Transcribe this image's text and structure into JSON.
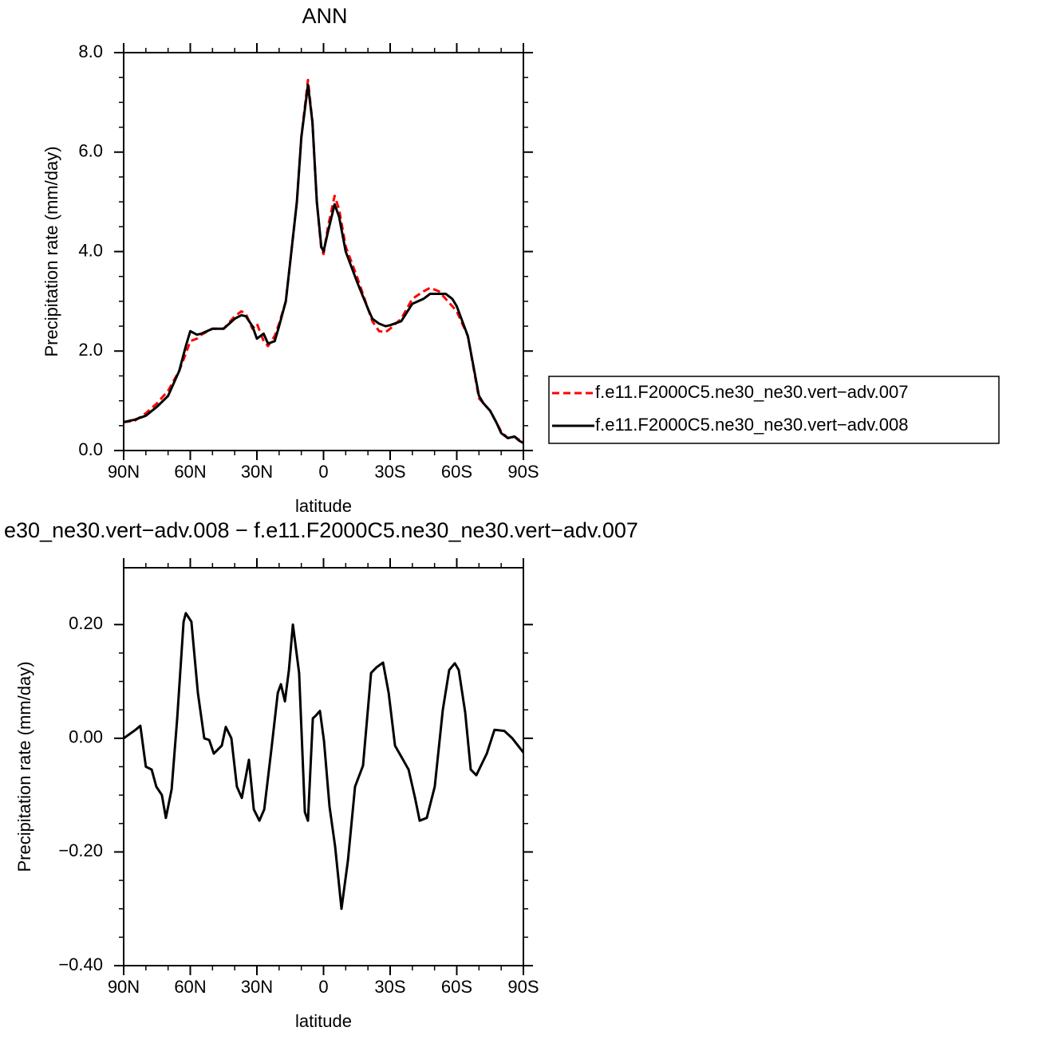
{
  "chart_data": [
    {
      "type": "line",
      "title": "ANN",
      "xlabel": "latitude",
      "ylabel": "Precipitation rate (mm/day)",
      "x": [
        90,
        85,
        80,
        75,
        70,
        65,
        62,
        60,
        57,
        55,
        50,
        45,
        40,
        37,
        35,
        32,
        30,
        27,
        25,
        22,
        20,
        17,
        15,
        12,
        10,
        7,
        5,
        3,
        1,
        0,
        -2,
        -5,
        -7,
        -10,
        -15,
        -20,
        -22,
        -25,
        -28,
        -30,
        -35,
        -40,
        -45,
        -48,
        -52,
        -55,
        -58,
        -60,
        -65,
        -70,
        -72,
        -75,
        -78,
        -80,
        -83,
        -86,
        -88,
        -90
      ],
      "series": [
        {
          "name": "f.e11.F2000C5.ne30_ne30.vert−adv.007",
          "color": "#ff0000",
          "linestyle": "dashed",
          "values": [
            0.57,
            0.6,
            0.75,
            0.95,
            1.2,
            1.6,
            1.95,
            2.2,
            2.25,
            2.33,
            2.45,
            2.45,
            2.7,
            2.8,
            2.75,
            2.45,
            2.55,
            2.2,
            2.1,
            2.3,
            2.55,
            3.0,
            3.8,
            5.0,
            6.3,
            7.45,
            6.6,
            5.0,
            4.05,
            3.95,
            4.5,
            5.12,
            4.85,
            4.1,
            3.5,
            2.85,
            2.6,
            2.4,
            2.38,
            2.45,
            2.65,
            3.05,
            3.2,
            3.27,
            3.2,
            3.05,
            2.9,
            2.8,
            2.3,
            1.05,
            0.95,
            0.8,
            0.55,
            0.38,
            0.25,
            0.28,
            0.22,
            0.15
          ]
        },
        {
          "name": "f.e11.F2000C5.ne30_ne30.vert−adv.008",
          "color": "#000000",
          "linestyle": "solid",
          "values": [
            0.57,
            0.62,
            0.7,
            0.88,
            1.1,
            1.6,
            2.1,
            2.4,
            2.33,
            2.35,
            2.45,
            2.45,
            2.65,
            2.72,
            2.7,
            2.5,
            2.25,
            2.35,
            2.15,
            2.2,
            2.5,
            3.0,
            3.8,
            5.0,
            6.3,
            7.35,
            6.6,
            5.0,
            4.1,
            4.0,
            4.4,
            4.95,
            4.7,
            4.0,
            3.4,
            2.85,
            2.65,
            2.55,
            2.5,
            2.52,
            2.6,
            2.95,
            3.05,
            3.15,
            3.15,
            3.15,
            3.05,
            2.9,
            2.3,
            1.1,
            0.95,
            0.8,
            0.55,
            0.35,
            0.25,
            0.28,
            0.2,
            0.15
          ]
        }
      ],
      "xlim": [
        90,
        -90
      ],
      "xticks": [
        {
          "value": 90,
          "label": "90N"
        },
        {
          "value": 60,
          "label": "60N"
        },
        {
          "value": 30,
          "label": "30N"
        },
        0,
        {
          "value": -30,
          "label": "30S"
        },
        {
          "value": -60,
          "label": "60S"
        },
        {
          "value": -90,
          "label": "90S"
        }
      ],
      "ylim": [
        0,
        8
      ],
      "yticks": [
        {
          "value": 0,
          "label": "0.0"
        },
        {
          "value": 2,
          "label": "2.0"
        },
        {
          "value": 4,
          "label": "4.0"
        },
        {
          "value": 6,
          "label": "6.0"
        },
        {
          "value": 8,
          "label": "8.0"
        }
      ],
      "minor_ticks": {
        "x": 2,
        "y": 3
      },
      "legend": "right"
    },
    {
      "type": "line",
      "title": "e30_ne30.vert−adv.008 − f.e11.F2000C5.ne30_ne30.vert−adv.007",
      "xlabel": "latitude",
      "ylabel": "Precipitation rate (mm/day)",
      "x": [
        90,
        84.6,
        82.5,
        80,
        77.4,
        75.3,
        72.8,
        71,
        68.4,
        65.9,
        63,
        62,
        59.5,
        56.6,
        53.7,
        51.5,
        49.4,
        45.8,
        44,
        41.5,
        39,
        36.8,
        33.6,
        31.4,
        28.9,
        26.7,
        23.5,
        20.6,
        19.2,
        17.4,
        15.6,
        13.8,
        11,
        8.4,
        7,
        4.8,
        3.4,
        1.6,
        -0.2,
        -2.7,
        -5.2,
        -8.1,
        -11,
        -14.2,
        -17.8,
        -21.4,
        -23.9,
        -26.8,
        -29.3,
        -32.2,
        -35.4,
        -38.3,
        -41.2,
        -43.3,
        -46.5,
        -50.1,
        -53.7,
        -56.6,
        -59.1,
        -60.9,
        -63.8,
        -66.3,
        -68.8,
        -73.5,
        -77,
        -81.4,
        -85,
        -90
      ],
      "values": [
        0.0,
        0.015,
        0.022,
        -0.05,
        -0.055,
        -0.085,
        -0.1,
        -0.14,
        -0.09,
        0.035,
        0.205,
        0.22,
        0.205,
        0.08,
        0.0,
        -0.003,
        -0.027,
        -0.013,
        0.02,
        0.0,
        -0.085,
        -0.105,
        -0.038,
        -0.125,
        -0.145,
        -0.125,
        -0.02,
        0.08,
        0.095,
        0.065,
        0.12,
        0.2,
        0.115,
        -0.13,
        -0.145,
        0.035,
        0.04,
        0.048,
        -0.005,
        -0.12,
        -0.19,
        -0.3,
        -0.215,
        -0.085,
        -0.048,
        0.115,
        0.125,
        0.133,
        0.08,
        -0.013,
        -0.035,
        -0.055,
        -0.105,
        -0.145,
        -0.14,
        -0.085,
        0.05,
        0.12,
        0.132,
        0.12,
        0.045,
        -0.055,
        -0.065,
        -0.027,
        0.015,
        0.013,
        0.0,
        -0.025
      ],
      "color": "#000000",
      "xlim": [
        90,
        -90
      ],
      "xticks": [
        {
          "value": 90,
          "label": "90N"
        },
        {
          "value": 60,
          "label": "60N"
        },
        {
          "value": 30,
          "label": "30N"
        },
        0,
        {
          "value": -30,
          "label": "30S"
        },
        {
          "value": -60,
          "label": "60S"
        },
        {
          "value": -90,
          "label": "90S"
        }
      ],
      "ylim": [
        -0.4,
        0.3
      ],
      "yticks": [
        {
          "value": -0.4,
          "label": "−0.40"
        },
        {
          "value": -0.2,
          "label": "−0.20"
        },
        {
          "value": 0,
          "label": "0.00"
        },
        {
          "value": 0.2,
          "label": "0.20"
        }
      ],
      "minor_ticks": {
        "x": 2,
        "y": 3
      }
    }
  ]
}
